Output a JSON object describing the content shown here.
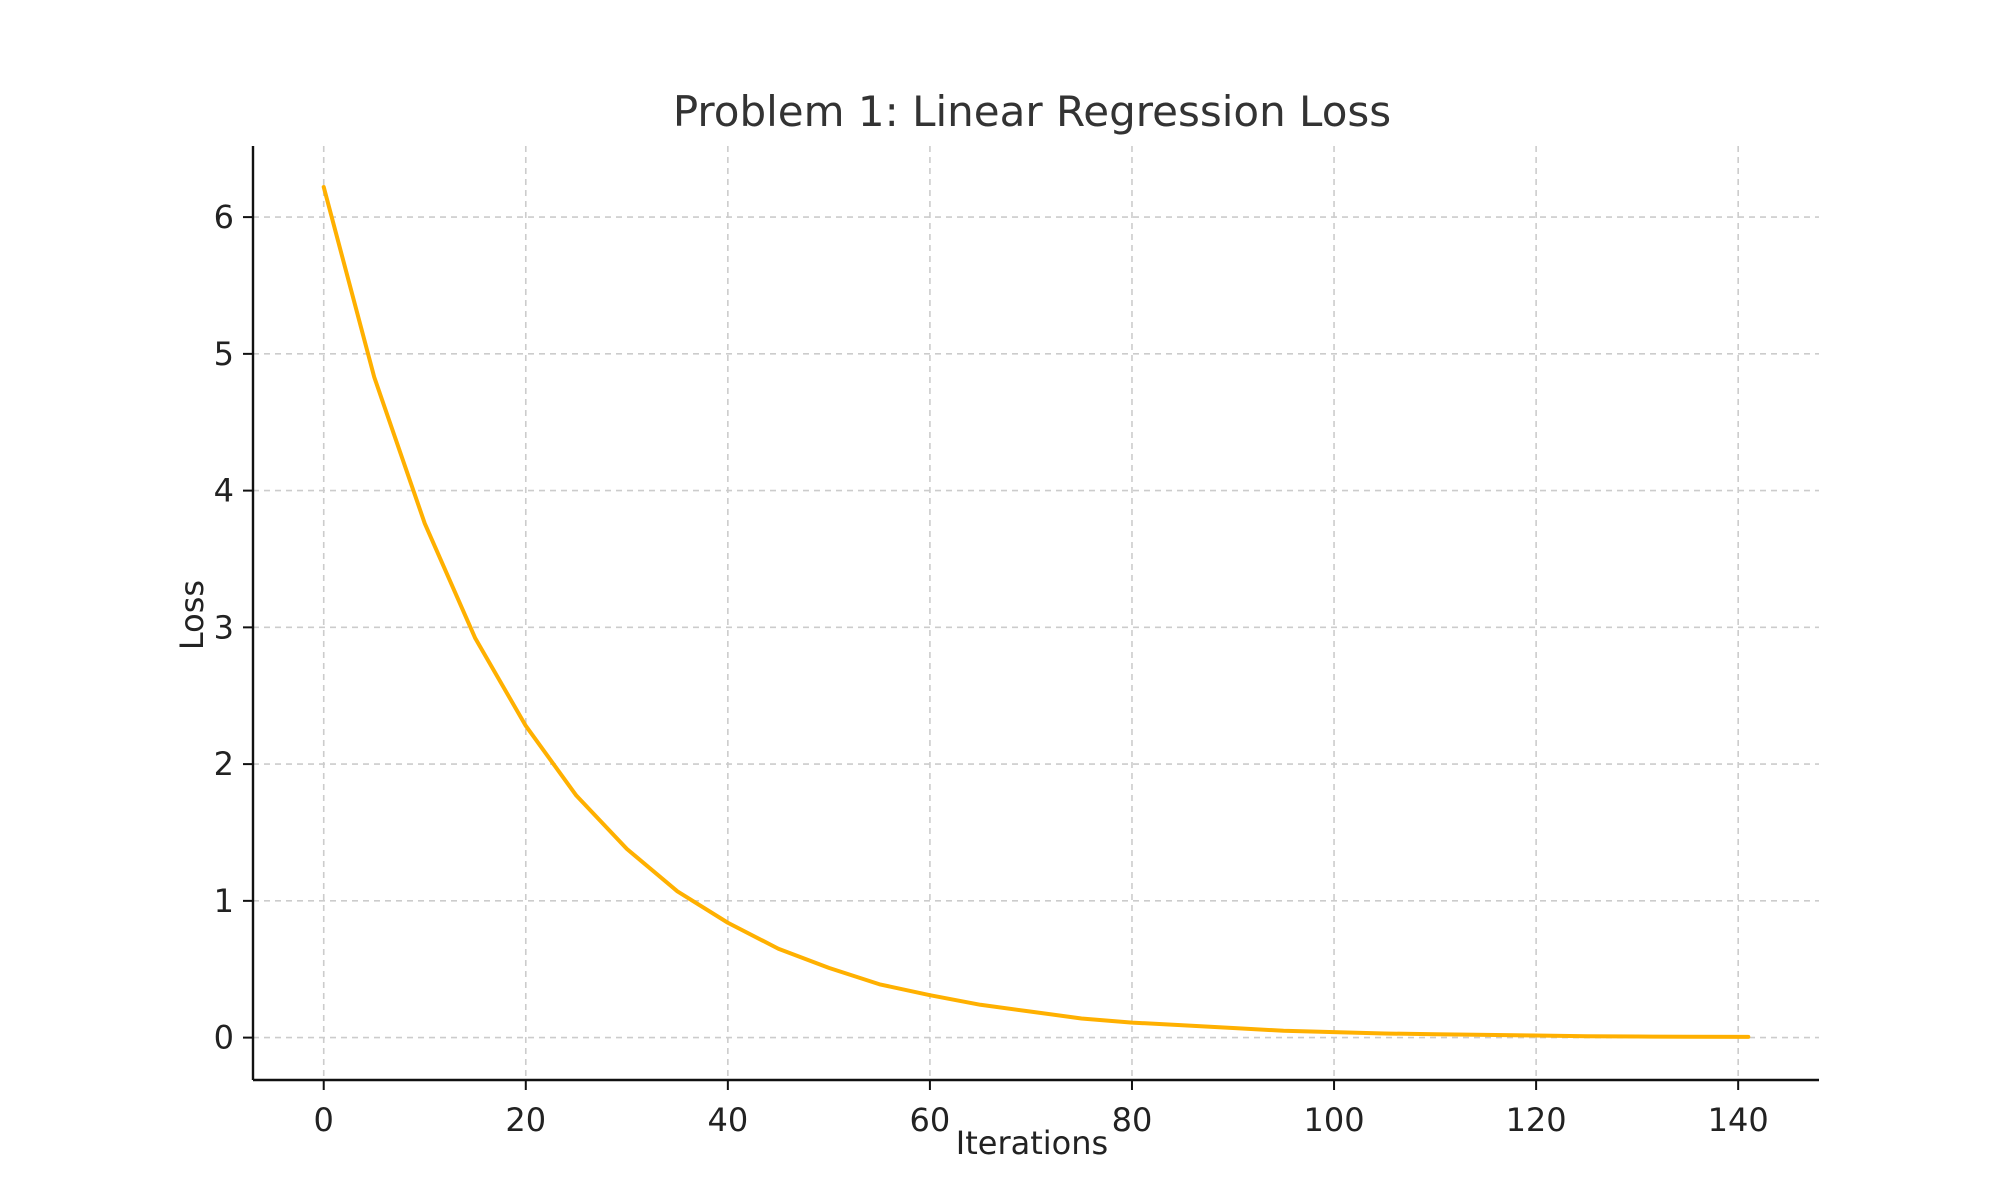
{
  "chart_data": {
    "type": "line",
    "title": "Problem 1: Linear Regression Loss",
    "xlabel": "Iterations",
    "ylabel": "Loss",
    "xlim": [
      -7,
      148
    ],
    "ylim": [
      -0.31,
      6.52
    ],
    "xticks": [
      0,
      20,
      40,
      60,
      80,
      100,
      120,
      140
    ],
    "yticks": [
      0,
      1,
      2,
      3,
      4,
      5,
      6
    ],
    "xtick_labels": [
      "0",
      "20",
      "40",
      "60",
      "80",
      "100",
      "120",
      "140"
    ],
    "ytick_labels": [
      "0",
      "1",
      "2",
      "3",
      "4",
      "5",
      "6"
    ],
    "grid": true,
    "series": [
      {
        "color": "#ffb000",
        "x": [
          0,
          5,
          10,
          15,
          20,
          25,
          30,
          35,
          40,
          45,
          50,
          55,
          60,
          65,
          70,
          75,
          80,
          85,
          90,
          95,
          100,
          105,
          110,
          115,
          120,
          125,
          130,
          135,
          141
        ],
        "y": [
          6.22,
          4.83,
          3.76,
          2.92,
          2.28,
          1.77,
          1.38,
          1.07,
          0.84,
          0.65,
          0.51,
          0.39,
          0.31,
          0.24,
          0.19,
          0.14,
          0.11,
          0.09,
          0.07,
          0.05,
          0.04,
          0.03,
          0.025,
          0.02,
          0.015,
          0.01,
          0.008,
          0.006,
          0.005
        ]
      }
    ]
  }
}
